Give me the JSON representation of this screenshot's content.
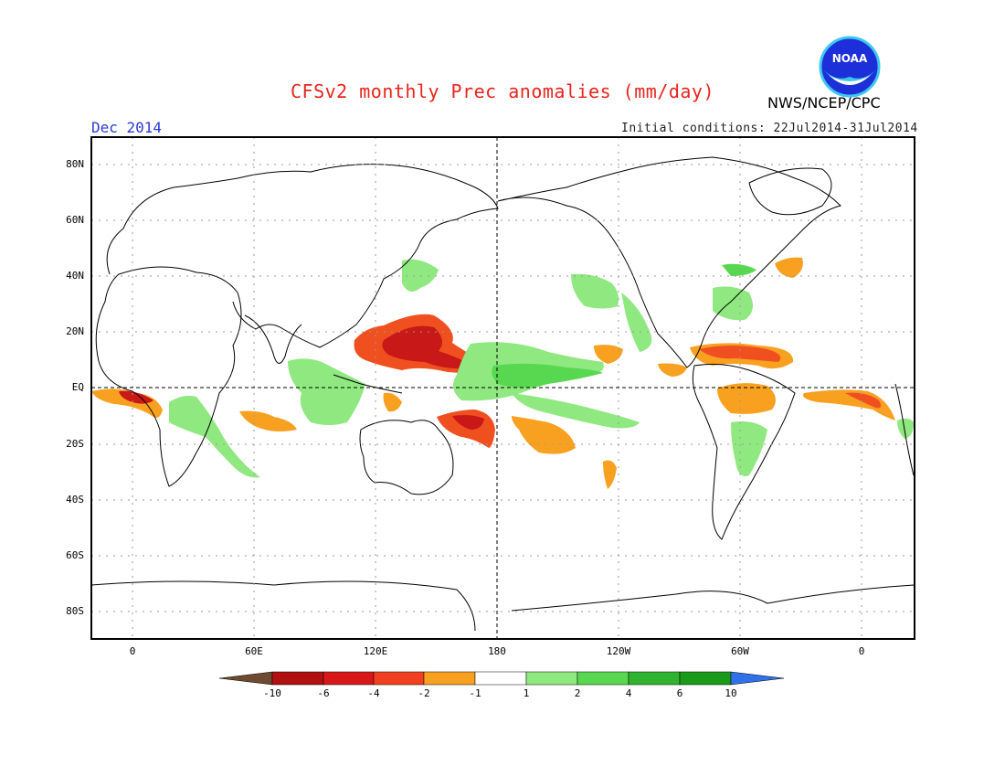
{
  "header": {
    "title": "CFSv2 monthly Prec anomalies (mm/day)",
    "agency": "NWS/NCEP/CPC",
    "logo_text": "NOAA",
    "month": "Dec 2014",
    "initial_conditions": "Initial conditions: 22Jul2014-31Jul2014"
  },
  "axes": {
    "lat_labels": [
      "80N",
      "60N",
      "40N",
      "20N",
      "EQ",
      "20S",
      "40S",
      "60S",
      "80S"
    ],
    "lon_labels": [
      "0",
      "60E",
      "120E",
      "180",
      "120W",
      "60W",
      "0"
    ]
  },
  "colorbar": {
    "labels": [
      "-10",
      "-6",
      "-4",
      "-2",
      "-1",
      "1",
      "2",
      "4",
      "6",
      "10"
    ],
    "colors": [
      "#6e4a30",
      "#b01010",
      "#d81818",
      "#f04020",
      "#f8a020",
      "#ffffff",
      "#90e880",
      "#58d850",
      "#30b430",
      "#1a9a1a",
      "#3070e8"
    ]
  },
  "legend_colors": {
    "strong_dry": "#c81818",
    "dry": "#f05020",
    "mild_dry": "#f8a020",
    "mild_wet": "#90e880",
    "wet": "#58d850",
    "title": "#e8241c",
    "month": "#2a3bd6"
  }
}
